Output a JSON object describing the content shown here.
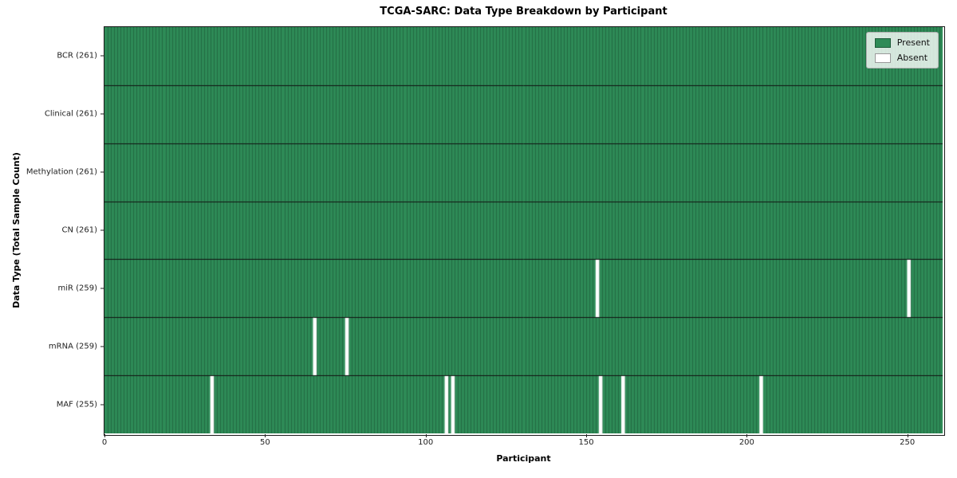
{
  "colors": {
    "present": "#2e8b57",
    "present_edge": "#1d5c39",
    "absent": "#ffffff",
    "row_divider": "#111111",
    "absent_swatch_border": "#999999",
    "axis": "#222222"
  },
  "chart_data": {
    "type": "heatmap",
    "title": "TCGA-SARC: Data Type Breakdown by Participant",
    "xlabel": "Participant",
    "ylabel": "Data Type (Total Sample Count)",
    "n_participants": 261,
    "x_axis_ticks": [
      0,
      50,
      100,
      150,
      200,
      250
    ],
    "legend": [
      "Present",
      "Absent"
    ],
    "legend_position": "upper right",
    "grid": false,
    "rows": [
      {
        "label": "BCR (261)",
        "data_type": "BCR",
        "total": 261,
        "absent_participants": []
      },
      {
        "label": "Clinical (261)",
        "data_type": "Clinical",
        "total": 261,
        "absent_participants": []
      },
      {
        "label": "Methylation (261)",
        "data_type": "Methylation",
        "total": 261,
        "absent_participants": []
      },
      {
        "label": "CN (261)",
        "data_type": "CN",
        "total": 261,
        "absent_participants": []
      },
      {
        "label": "miR (259)",
        "data_type": "miR",
        "total": 259,
        "absent_participants": [
          153,
          250
        ]
      },
      {
        "label": "mRNA (259)",
        "data_type": "mRNA",
        "total": 259,
        "absent_participants": [
          65,
          75
        ]
      },
      {
        "label": "MAF (255)",
        "data_type": "MAF",
        "total": 255,
        "absent_participants": [
          33,
          106,
          108,
          154,
          161,
          204
        ]
      }
    ]
  }
}
